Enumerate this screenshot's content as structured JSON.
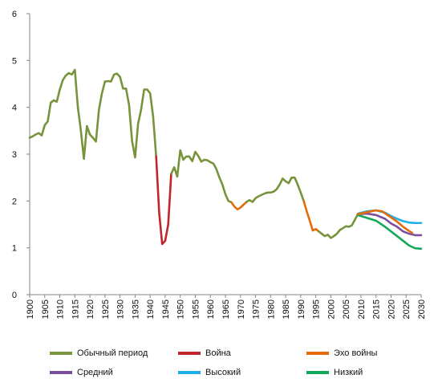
{
  "chart_data": {
    "type": "line",
    "title": "",
    "xlabel": "",
    "ylabel": "",
    "xlim": [
      1900,
      2030
    ],
    "ylim": [
      0,
      6
    ],
    "y_ticks": [
      0,
      1,
      2,
      3,
      4,
      5,
      6
    ],
    "x_ticks": [
      1900,
      1905,
      1910,
      1915,
      1920,
      1925,
      1930,
      1935,
      1940,
      1945,
      1950,
      1955,
      1960,
      1965,
      1970,
      1975,
      1980,
      1985,
      1990,
      1995,
      2000,
      2005,
      2010,
      2015,
      2020,
      2025,
      2030
    ],
    "x_ticks_labels": [
      "1900",
      "1905",
      "1910",
      "1915",
      "1920",
      "1925",
      "1930",
      "1935",
      "1940",
      "1945",
      "1950",
      "1955",
      "1960",
      "1965",
      "1970",
      "1975",
      "1980",
      "1985",
      "1990",
      "1995",
      "2000",
      "2005",
      "2010",
      "2015",
      "2020",
      "2025",
      "2030"
    ],
    "y_ticks_labels": [
      "0",
      "1",
      "2",
      "3",
      "4",
      "5",
      "6"
    ],
    "grid": false,
    "legend_position": "bottom",
    "series": [
      {
        "name": "Обычный период",
        "color": "#77933C",
        "points": [
          [
            1900,
            3.35
          ],
          [
            1901,
            3.38
          ],
          [
            1902,
            3.42
          ],
          [
            1903,
            3.45
          ],
          [
            1904,
            3.4
          ],
          [
            1905,
            3.62
          ],
          [
            1906,
            3.7
          ],
          [
            1907,
            4.1
          ],
          [
            1908,
            4.15
          ],
          [
            1909,
            4.12
          ],
          [
            1910,
            4.38
          ],
          [
            1911,
            4.58
          ],
          [
            1912,
            4.68
          ],
          [
            1913,
            4.73
          ],
          [
            1914,
            4.7
          ],
          [
            1915,
            4.8
          ],
          [
            1916,
            4.0
          ],
          [
            1917,
            3.5
          ],
          [
            1918,
            2.9
          ],
          [
            1919,
            3.6
          ],
          [
            1920,
            3.42
          ],
          [
            1921,
            3.35
          ],
          [
            1922,
            3.27
          ],
          [
            1923,
            3.95
          ],
          [
            1924,
            4.3
          ],
          [
            1925,
            4.55
          ],
          [
            1926,
            4.56
          ],
          [
            1927,
            4.55
          ],
          [
            1928,
            4.7
          ],
          [
            1929,
            4.72
          ],
          [
            1930,
            4.65
          ],
          [
            1931,
            4.4
          ],
          [
            1932,
            4.4
          ],
          [
            1933,
            4.05
          ],
          [
            1934,
            3.28
          ],
          [
            1935,
            2.93
          ],
          [
            1936,
            3.65
          ],
          [
            1937,
            3.95
          ],
          [
            1938,
            4.38
          ],
          [
            1939,
            4.38
          ],
          [
            1940,
            4.3
          ],
          [
            1941,
            3.8
          ],
          [
            1942,
            2.95
          ]
        ]
      },
      {
        "name": "Война",
        "color": "#C0262C",
        "points": [
          [
            1942,
            2.95
          ],
          [
            1943,
            1.75
          ],
          [
            1944,
            1.08
          ],
          [
            1945,
            1.15
          ],
          [
            1946,
            1.5
          ],
          [
            1947,
            2.58
          ]
        ]
      },
      {
        "name": "Обычный период",
        "color": "#77933C",
        "points": [
          [
            1947,
            2.58
          ],
          [
            1948,
            2.72
          ],
          [
            1949,
            2.52
          ],
          [
            1950,
            3.08
          ],
          [
            1951,
            2.88
          ],
          [
            1952,
            2.95
          ],
          [
            1953,
            2.95
          ],
          [
            1954,
            2.85
          ],
          [
            1955,
            3.05
          ],
          [
            1956,
            2.96
          ],
          [
            1957,
            2.84
          ],
          [
            1958,
            2.88
          ],
          [
            1959,
            2.87
          ],
          [
            1960,
            2.83
          ],
          [
            1961,
            2.8
          ],
          [
            1962,
            2.68
          ],
          [
            1963,
            2.5
          ],
          [
            1964,
            2.35
          ],
          [
            1965,
            2.14
          ],
          [
            1966,
            2.0
          ],
          [
            1967,
            1.97
          ]
        ]
      },
      {
        "name": "Эхо войны",
        "color": "#E46C0A",
        "points": [
          [
            1967,
            1.97
          ],
          [
            1968,
            1.88
          ],
          [
            1969,
            1.82
          ],
          [
            1970,
            1.86
          ],
          [
            1971,
            1.92
          ],
          [
            1972,
            1.98
          ]
        ]
      },
      {
        "name": "Обычный период",
        "color": "#77933C",
        "points": [
          [
            1972,
            1.98
          ],
          [
            1973,
            2.02
          ],
          [
            1974,
            1.98
          ],
          [
            1975,
            2.06
          ],
          [
            1976,
            2.1
          ],
          [
            1977,
            2.13
          ],
          [
            1978,
            2.16
          ],
          [
            1979,
            2.18
          ],
          [
            1980,
            2.18
          ],
          [
            1981,
            2.2
          ],
          [
            1982,
            2.25
          ],
          [
            1983,
            2.35
          ],
          [
            1984,
            2.48
          ],
          [
            1985,
            2.42
          ],
          [
            1986,
            2.38
          ],
          [
            1987,
            2.5
          ],
          [
            1988,
            2.5
          ],
          [
            1989,
            2.35
          ],
          [
            1990,
            2.18
          ],
          [
            1991,
            2.0
          ]
        ]
      },
      {
        "name": "Эхо войны",
        "color": "#E46C0A",
        "points": [
          [
            1991,
            2.0
          ],
          [
            1992,
            1.78
          ],
          [
            1993,
            1.58
          ],
          [
            1994,
            1.37
          ],
          [
            1995,
            1.4
          ],
          [
            1996,
            1.35
          ]
        ]
      },
      {
        "name": "Обычный период",
        "color": "#77933C",
        "points": [
          [
            1996,
            1.35
          ],
          [
            1997,
            1.3
          ],
          [
            1998,
            1.25
          ],
          [
            1999,
            1.28
          ],
          [
            2000,
            1.21
          ],
          [
            2001,
            1.25
          ],
          [
            2002,
            1.3
          ],
          [
            2003,
            1.38
          ],
          [
            2004,
            1.42
          ],
          [
            2005,
            1.46
          ],
          [
            2006,
            1.45
          ],
          [
            2007,
            1.48
          ],
          [
            2008,
            1.6
          ],
          [
            2009,
            1.72
          ]
        ]
      },
      {
        "name": "Средний",
        "color": "#7B4F9C",
        "points": [
          [
            2009,
            1.72
          ],
          [
            2012,
            1.73
          ],
          [
            2015,
            1.7
          ],
          [
            2018,
            1.62
          ],
          [
            2020,
            1.52
          ],
          [
            2022,
            1.45
          ],
          [
            2024,
            1.35
          ],
          [
            2026,
            1.3
          ],
          [
            2028,
            1.27
          ],
          [
            2030,
            1.27
          ]
        ]
      },
      {
        "name": "Высокий",
        "color": "#1EAFE6",
        "points": [
          [
            2009,
            1.73
          ],
          [
            2012,
            1.78
          ],
          [
            2015,
            1.8
          ],
          [
            2018,
            1.75
          ],
          [
            2020,
            1.68
          ],
          [
            2022,
            1.62
          ],
          [
            2024,
            1.57
          ],
          [
            2026,
            1.54
          ],
          [
            2028,
            1.53
          ],
          [
            2030,
            1.53
          ]
        ]
      },
      {
        "name": "Низкий",
        "color": "#12A85A",
        "points": [
          [
            2009,
            1.7
          ],
          [
            2012,
            1.64
          ],
          [
            2015,
            1.58
          ],
          [
            2018,
            1.45
          ],
          [
            2020,
            1.35
          ],
          [
            2022,
            1.25
          ],
          [
            2024,
            1.15
          ],
          [
            2026,
            1.05
          ],
          [
            2028,
            0.99
          ],
          [
            2030,
            0.98
          ]
        ]
      },
      {
        "name": "Эхо войны",
        "color": "#E46C0A",
        "points": [
          [
            2009,
            1.72
          ],
          [
            2012,
            1.76
          ],
          [
            2015,
            1.8
          ],
          [
            2017,
            1.78
          ],
          [
            2020,
            1.65
          ],
          [
            2022,
            1.56
          ],
          [
            2024,
            1.45
          ],
          [
            2026,
            1.36
          ],
          [
            2027,
            1.32
          ]
        ]
      }
    ],
    "legend": [
      {
        "label": "Обычный период",
        "color": "#77933C"
      },
      {
        "label": "Война",
        "color": "#C0262C"
      },
      {
        "label": "Эхо войны",
        "color": "#E46C0A"
      },
      {
        "label": "Средний",
        "color": "#7B4F9C"
      },
      {
        "label": "Высокий",
        "color": "#1EAFE6"
      },
      {
        "label": "Низкий",
        "color": "#12A85A"
      }
    ]
  }
}
